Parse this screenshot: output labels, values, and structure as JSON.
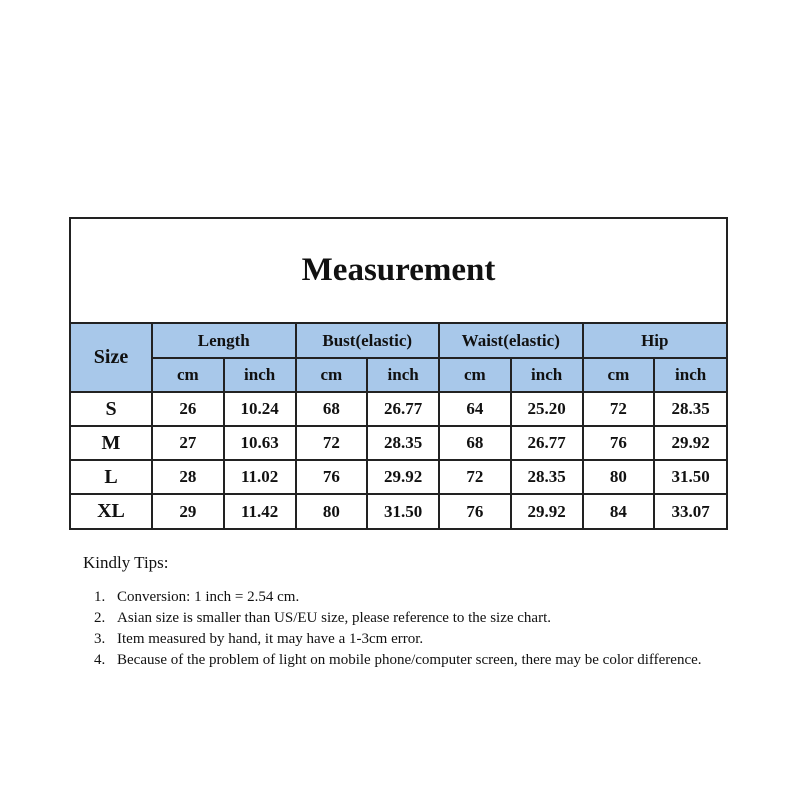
{
  "title": "Measurement",
  "size_header": "Size",
  "groups": [
    "Length",
    "Bust(elastic)",
    "Waist(elastic)",
    "Hip"
  ],
  "units": [
    "cm",
    "inch"
  ],
  "rows": [
    [
      "S",
      "26",
      "10.24",
      "68",
      "26.77",
      "64",
      "25.20",
      "72",
      "28.35"
    ],
    [
      "M",
      "27",
      "10.63",
      "72",
      "28.35",
      "68",
      "26.77",
      "76",
      "29.92"
    ],
    [
      "L",
      "28",
      "11.02",
      "76",
      "29.92",
      "72",
      "28.35",
      "80",
      "31.50"
    ],
    [
      "XL",
      "29",
      "11.42",
      "80",
      "31.50",
      "76",
      "29.92",
      "84",
      "33.07"
    ]
  ],
  "header_color": "#a8c8ea",
  "tips": {
    "heading": "Kindly Tips:",
    "items": [
      "Conversion: 1 inch = 2.54 cm.",
      "Asian size is smaller than US/EU size, please reference to the size chart.",
      "Item measured by hand, it may have a 1-3cm error.",
      "Because of the problem of light on mobile phone/computer screen, there may be color difference."
    ]
  }
}
